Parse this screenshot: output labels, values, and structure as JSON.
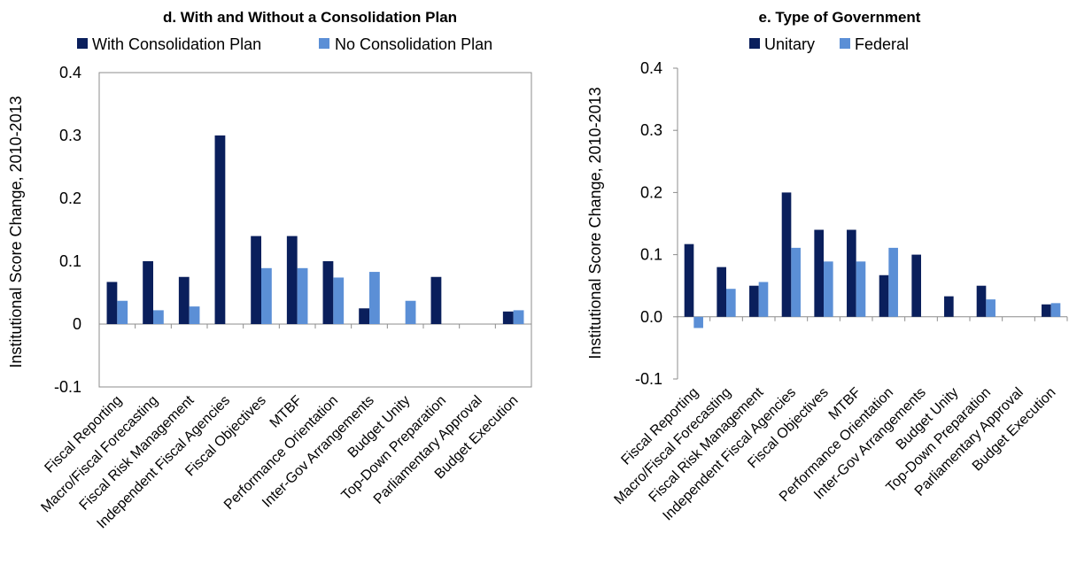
{
  "chart_data": [
    {
      "type": "bar",
      "title": "d. With and Without a Consolidation Plan",
      "ylabel": "Institutional Score Change, 2010-2013",
      "xlabel": "",
      "ylim": [
        -0.1,
        0.4
      ],
      "yticks": [
        "0.4",
        "0.3",
        "0.2",
        "0.1",
        "0",
        "-0.1"
      ],
      "ytick_values": [
        0.4,
        0.3,
        0.2,
        0.1,
        0,
        -0.1
      ],
      "legend_position": "top",
      "grid": false,
      "categories": [
        "Fiscal Reporting",
        "Macro/Fiscal Forecasting",
        "Fiscal Risk Management",
        "Independent Fiscal Agencies",
        "Fiscal Objectives",
        "MTBF",
        "Performance Orientation",
        "Inter-Gov  Arrangements",
        "Budget Unity",
        "Top-Down Preparation",
        "Parliamentary Approval",
        "Budget Execution"
      ],
      "series": [
        {
          "name": "With Consolidation Plan",
          "color": "#0a1f5c",
          "values": [
            0.067,
            0.1,
            0.075,
            0.3,
            0.14,
            0.14,
            0.1,
            0.025,
            0,
            0.075,
            0,
            0.02
          ]
        },
        {
          "name": "No Consolidation Plan",
          "color": "#5b8fd6",
          "values": [
            0.037,
            0.022,
            0.028,
            0,
            0.089,
            0.089,
            0.074,
            0.083,
            0.037,
            0,
            0,
            0.022
          ]
        }
      ]
    },
    {
      "type": "bar",
      "title": "e. Type of Government",
      "ylabel": "Institutional Score Change, 2010-2013",
      "xlabel": "",
      "ylim": [
        -0.1,
        0.4
      ],
      "yticks": [
        "0.4",
        "0.3",
        "0.2",
        "0.1",
        "0.0",
        "-0.1"
      ],
      "ytick_values": [
        0.4,
        0.3,
        0.2,
        0.1,
        0,
        -0.1
      ],
      "legend_position": "top",
      "grid": false,
      "categories": [
        "Fiscal Reporting",
        "Macro/Fiscal Forecasting",
        "Fiscal Risk Management",
        "Independent Fiscal Agencies",
        "Fiscal Objectives",
        "MTBF",
        "Performance Orientation",
        "Inter-Gov  Arrangements",
        "Budget Unity",
        "Top-Down Preparation",
        "Parliamentary Approval",
        "Budget Execution"
      ],
      "series": [
        {
          "name": "Unitary",
          "color": "#0a1f5c",
          "values": [
            0.117,
            0.08,
            0.05,
            0.2,
            0.14,
            0.14,
            0.067,
            0.1,
            0.033,
            0.05,
            0,
            0.02
          ]
        },
        {
          "name": "Federal",
          "color": "#5b8fd6",
          "values": [
            -0.018,
            0.045,
            0.056,
            0.111,
            0.089,
            0.089,
            0.111,
            0,
            0,
            0.028,
            0,
            0.022
          ]
        }
      ]
    }
  ]
}
